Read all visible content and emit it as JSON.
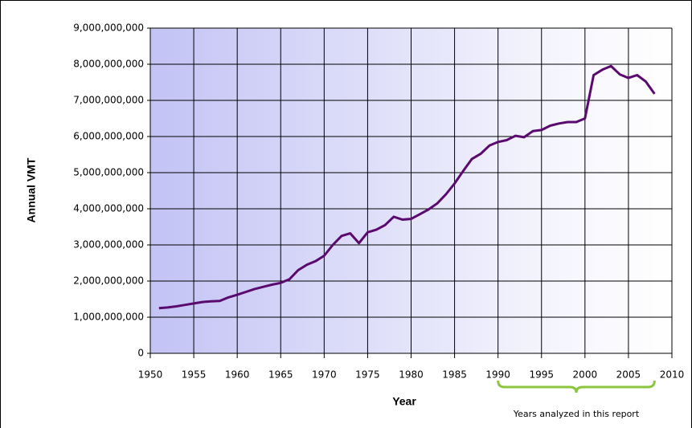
{
  "chart_data": {
    "type": "line",
    "x_label": "Year",
    "y_label": "Annual VMT",
    "x": [
      1951,
      1952,
      1953,
      1954,
      1955,
      1956,
      1957,
      1958,
      1959,
      1960,
      1961,
      1962,
      1963,
      1964,
      1965,
      1966,
      1967,
      1968,
      1969,
      1970,
      1971,
      1972,
      1973,
      1974,
      1975,
      1976,
      1977,
      1978,
      1979,
      1980,
      1981,
      1982,
      1983,
      1984,
      1985,
      1986,
      1987,
      1988,
      1989,
      1990,
      1991,
      1992,
      1993,
      1994,
      1995,
      1996,
      1997,
      1998,
      1999,
      2000,
      2001,
      2002,
      2003,
      2004,
      2005,
      2006,
      2007,
      2008
    ],
    "values": [
      1250000000,
      1270000000,
      1300000000,
      1340000000,
      1380000000,
      1420000000,
      1440000000,
      1450000000,
      1550000000,
      1620000000,
      1700000000,
      1780000000,
      1840000000,
      1900000000,
      1950000000,
      2050000000,
      2300000000,
      2450000000,
      2550000000,
      2700000000,
      3000000000,
      3250000000,
      3320000000,
      3050000000,
      3350000000,
      3420000000,
      3550000000,
      3780000000,
      3700000000,
      3720000000,
      3850000000,
      3980000000,
      4150000000,
      4400000000,
      4700000000,
      5050000000,
      5380000000,
      5520000000,
      5750000000,
      5850000000,
      5900000000,
      6020000000,
      5980000000,
      6150000000,
      6180000000,
      6300000000,
      6360000000,
      6400000000,
      6400000000,
      6500000000,
      7700000000,
      7850000000,
      7950000000,
      7720000000,
      7620000000,
      7700000000,
      7520000000,
      7180000000
    ],
    "color": "#5a0a6e",
    "xlim": [
      1950,
      2010
    ],
    "xticks": [
      1950,
      1955,
      1960,
      1965,
      1970,
      1975,
      1980,
      1985,
      1990,
      1995,
      2000,
      2005,
      2010
    ],
    "ylim": [
      0,
      9000000000
    ],
    "yticks": [
      0,
      {
        "value": 1000000000,
        "label": "1,000,000,000"
      },
      {
        "value": 2000000000,
        "label": "2,000,000,000"
      },
      {
        "value": 3000000000,
        "label": "3,000,000,000"
      },
      {
        "value": 4000000000,
        "label": "4,000,000,000"
      },
      {
        "value": 5000000000,
        "label": "5,000,000,000"
      },
      {
        "value": 6000000000,
        "label": "6,000,000,000"
      },
      {
        "value": 7000000000,
        "label": "7,000,000,000"
      },
      {
        "value": 8000000000,
        "label": "8,000,000,000"
      },
      {
        "value": 9000000000,
        "label": "9,000,000,000"
      }
    ],
    "grid": true,
    "annotation": {
      "text": "Years analyzed in this report",
      "range": [
        1990,
        2008
      ],
      "color": "#8cc63f"
    }
  }
}
